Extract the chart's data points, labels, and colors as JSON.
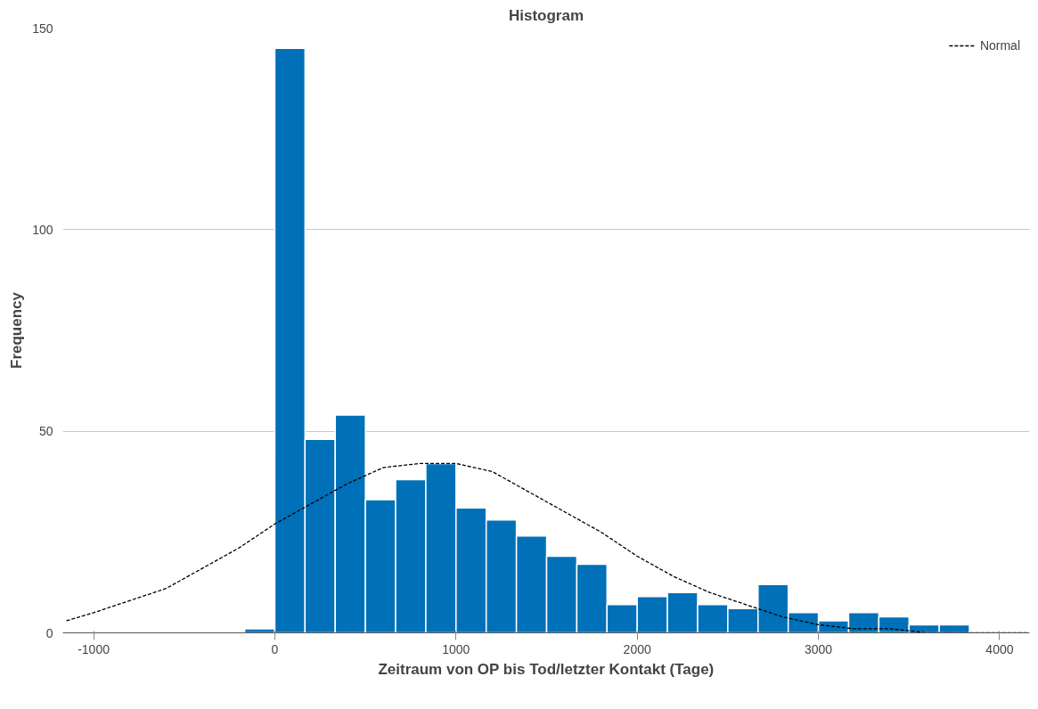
{
  "chart_data": {
    "type": "histogram",
    "title": "Histogram",
    "xlabel": "Zeitraum von OP bis Tod/letzter Kontakt (Tage)",
    "ylabel": "Frequency",
    "bins": [
      -166.67,
      0,
      166.67,
      333.33,
      500,
      666.67,
      833.33,
      1000,
      1166.67,
      1333.33,
      1500,
      1666.67,
      1833.33,
      2000,
      2166.67,
      2333.33,
      2500,
      2666.67,
      2833.33,
      3000,
      3166.67,
      3333.33,
      3500,
      3666.67,
      3833.33
    ],
    "values": [
      1,
      145,
      48,
      54,
      33,
      38,
      42,
      31,
      28,
      24,
      19,
      17,
      7,
      9,
      10,
      7,
      6,
      12,
      5,
      3,
      5,
      4,
      2,
      2
    ],
    "color": "#0071b8",
    "series": [
      {
        "name": "Normal",
        "type": "line",
        "color": "#000000",
        "line_style": "dashed",
        "x": [
          -1150,
          -1000,
          -800,
          -600,
          -400,
          -200,
          0,
          200,
          400,
          600,
          800,
          1000,
          1200,
          1400,
          1600,
          1800,
          2000,
          2200,
          2400,
          2600,
          2800,
          3000,
          3200,
          3400,
          3600,
          3800,
          4000,
          4150
        ],
        "values": [
          3,
          5,
          8,
          11,
          16,
          21,
          27,
          32,
          37,
          41,
          42,
          42,
          40,
          35,
          30,
          25,
          19,
          14,
          10,
          7,
          4,
          2,
          1,
          1,
          0,
          0,
          0,
          0
        ]
      }
    ],
    "xlim": [
      -1170,
      4165
    ],
    "ylim": [
      0,
      150
    ],
    "xticks": [
      -1000,
      0,
      1000,
      2000,
      3000,
      4000
    ],
    "yticks": [
      0,
      50,
      100,
      150
    ],
    "grid": "y",
    "legend": "top right"
  }
}
